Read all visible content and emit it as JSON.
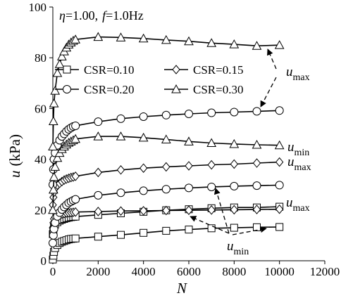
{
  "chart_data": {
    "type": "line",
    "condition": {
      "eta_symbol": "η",
      "eta_value": "=1.00,",
      "f_symbol": "f",
      "f_value": "=1.0Hz"
    },
    "ylabel_symbol": "u",
    "ylabel_unit": "(kPa)",
    "xlabel": "N",
    "xlim": [
      0,
      12000
    ],
    "ylim": [
      0,
      100
    ],
    "x_ticks": [
      "0",
      "2000",
      "4000",
      "6000",
      "8000",
      "10000",
      "12000"
    ],
    "y_ticks": [
      "0",
      "20",
      "40",
      "60",
      "80",
      "100"
    ],
    "grid": false,
    "legend_position": "top-left",
    "series": [
      {
        "name": "CSR=0.10",
        "marker": "square",
        "kind": "max",
        "x": [
          0,
          25,
          50,
          100,
          200,
          300,
          400,
          500,
          600,
          700,
          800,
          900,
          1000,
          2000,
          3000,
          4000,
          5000,
          6000,
          7000,
          8000,
          9000,
          10000
        ],
        "y": [
          10.5,
          12.0,
          13.2,
          14.3,
          15.2,
          15.8,
          16.2,
          16.5,
          16.8,
          17.0,
          17.2,
          17.3,
          17.4,
          18.1,
          18.7,
          19.3,
          19.9,
          20.3,
          20.7,
          21.0,
          21.0,
          21.3
        ]
      },
      {
        "name": "CSR=0.10",
        "marker": "square",
        "kind": "min",
        "x": [
          0,
          25,
          50,
          100,
          200,
          300,
          400,
          500,
          600,
          700,
          800,
          900,
          1000,
          2000,
          3000,
          4000,
          5000,
          6000,
          7000,
          8000,
          9000,
          10000
        ],
        "y": [
          0.5,
          2.0,
          3.5,
          5.0,
          6.2,
          7.0,
          7.5,
          7.8,
          8.1,
          8.4,
          8.6,
          8.7,
          8.8,
          9.5,
          10.2,
          11.0,
          11.8,
          12.3,
          12.8,
          13.0,
          13.2,
          13.3
        ]
      },
      {
        "name": "CSR=0.15",
        "marker": "diamond",
        "kind": "max",
        "x": [
          0,
          25,
          50,
          100,
          200,
          300,
          400,
          500,
          600,
          700,
          800,
          900,
          1000,
          2000,
          3000,
          4000,
          5000,
          6000,
          7000,
          8000,
          9000,
          10000
        ],
        "y": [
          13.0,
          15.0,
          16.5,
          17.2,
          17.8,
          18.1,
          18.4,
          18.6,
          18.8,
          18.9,
          19.0,
          19.1,
          19.2,
          19.4,
          19.6,
          19.7,
          19.8,
          19.9,
          20.0,
          20.1,
          20.2,
          20.3
        ]
      },
      {
        "name": "CSR=0.15",
        "marker": "diamond",
        "kind": "min",
        "x": [
          0,
          25,
          50,
          100,
          200,
          300,
          400,
          500,
          600,
          700,
          800,
          900,
          1000,
          2000,
          3000,
          4000,
          5000,
          6000,
          7000,
          8000,
          9000,
          10000
        ],
        "y": [
          22.0,
          25.0,
          27.0,
          28.5,
          29.8,
          30.5,
          31.2,
          31.8,
          32.2,
          32.5,
          32.8,
          33.0,
          33.3,
          34.8,
          35.8,
          36.5,
          37.0,
          37.4,
          37.8,
          38.1,
          38.5,
          38.9
        ]
      },
      {
        "name": "CSR=0.20",
        "marker": "circle",
        "kind": "max",
        "x": [
          0,
          25,
          50,
          100,
          200,
          300,
          400,
          500,
          600,
          700,
          800,
          900,
          1000,
          2000,
          3000,
          4000,
          5000,
          6000,
          7000,
          8000,
          9000,
          10000
        ],
        "y": [
          30.0,
          36.0,
          40.0,
          42.5,
          45.5,
          47.5,
          49.0,
          50.0,
          51.0,
          51.8,
          52.4,
          52.9,
          53.2,
          54.8,
          56.0,
          56.8,
          57.4,
          57.9,
          58.3,
          58.6,
          58.9,
          59.2
        ]
      },
      {
        "name": "CSR=0.20",
        "marker": "circle",
        "kind": "min",
        "x": [
          0,
          25,
          50,
          100,
          200,
          300,
          400,
          500,
          600,
          700,
          800,
          900,
          1000,
          2000,
          3000,
          4000,
          5000,
          6000,
          7000,
          8000,
          9000,
          10000
        ],
        "y": [
          7.0,
          10.0,
          12.5,
          15.0,
          17.5,
          19.0,
          20.2,
          21.2,
          22.0,
          22.8,
          23.3,
          23.8,
          24.2,
          25.8,
          26.8,
          27.6,
          28.2,
          28.7,
          29.1,
          29.4,
          29.6,
          29.8
        ]
      },
      {
        "name": "CSR=0.30",
        "marker": "triangle",
        "kind": "max",
        "x": [
          0,
          25,
          50,
          100,
          200,
          300,
          400,
          500,
          600,
          700,
          800,
          900,
          1000,
          2000,
          3000,
          4000,
          5000,
          6000,
          7000,
          8000,
          9000,
          10000
        ],
        "y": [
          45.0,
          55.0,
          62.0,
          67.0,
          74.0,
          77.5,
          80.5,
          82.5,
          84.0,
          85.2,
          86.0,
          86.7,
          87.2,
          88.2,
          88.0,
          87.6,
          87.0,
          86.5,
          85.8,
          85.3,
          84.7,
          85.0
        ]
      },
      {
        "name": "CSR=0.30",
        "marker": "triangle",
        "kind": "min",
        "x": [
          0,
          25,
          50,
          100,
          200,
          300,
          400,
          500,
          600,
          700,
          800,
          900,
          1000,
          2000,
          3000,
          4000,
          5000,
          6000,
          7000,
          8000,
          9000,
          10000
        ],
        "y": [
          20.0,
          28.0,
          33.0,
          37.0,
          40.5,
          42.5,
          44.0,
          45.0,
          45.8,
          46.5,
          47.0,
          47.5,
          48.0,
          49.0,
          49.0,
          48.5,
          47.8,
          47.0,
          46.4,
          46.0,
          45.7,
          45.5
        ]
      }
    ],
    "annotations": [
      {
        "main": "u",
        "sub": "max"
      },
      {
        "main": "u",
        "sub": "min"
      },
      {
        "main": "u",
        "sub": "max"
      },
      {
        "main": "u",
        "sub": "max"
      },
      {
        "main": "u",
        "sub": "min"
      }
    ]
  }
}
